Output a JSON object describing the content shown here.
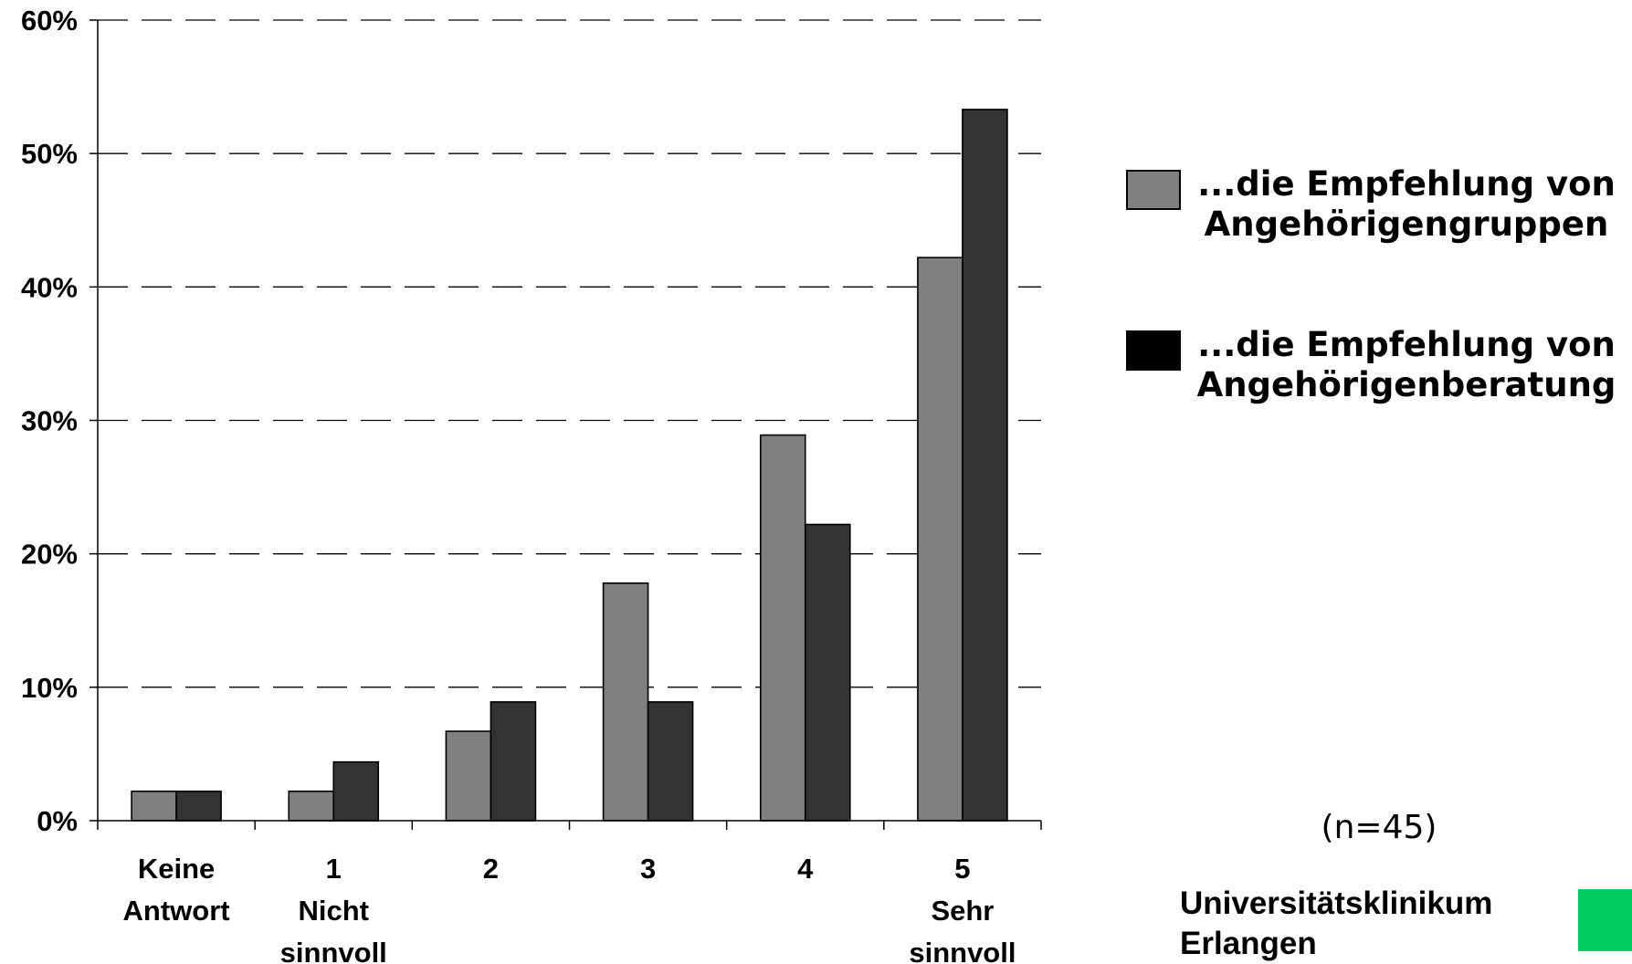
{
  "chart_data": {
    "type": "bar",
    "categories": [
      [
        "Keine",
        "Antwort"
      ],
      [
        "1",
        "Nicht",
        "sinnvoll"
      ],
      [
        "2"
      ],
      [
        "3"
      ],
      [
        "4"
      ],
      [
        "5",
        "Sehr",
        "sinnvoll"
      ]
    ],
    "series": [
      {
        "name_lines": [
          "...die Empfehlung von",
          "Angehörigengruppen"
        ],
        "color": "#808080",
        "values": [
          2.2,
          2.2,
          6.7,
          17.8,
          28.9,
          42.2
        ]
      },
      {
        "name_lines": [
          "...die Empfehlung von",
          "Angehörigenberatung"
        ],
        "color": "#333333",
        "values": [
          2.2,
          4.4,
          8.9,
          8.9,
          22.2,
          53.3
        ]
      }
    ],
    "legend_swatch_colors": [
      "#808080",
      "#000000"
    ],
    "ylim": [
      0,
      60
    ],
    "yticks": [
      0,
      10,
      20,
      30,
      40,
      50,
      60
    ],
    "ytick_labels": [
      "0%",
      "10%",
      "20%",
      "30%",
      "40%",
      "50%",
      "60%"
    ],
    "grid": "dashed-horizontal",
    "legend_position": "right"
  },
  "annotations": {
    "sample_size": "(n=45)"
  },
  "institution": {
    "lines": [
      "Universitätsklinikum",
      "Erlangen"
    ],
    "logo_color": "#00cc66"
  }
}
